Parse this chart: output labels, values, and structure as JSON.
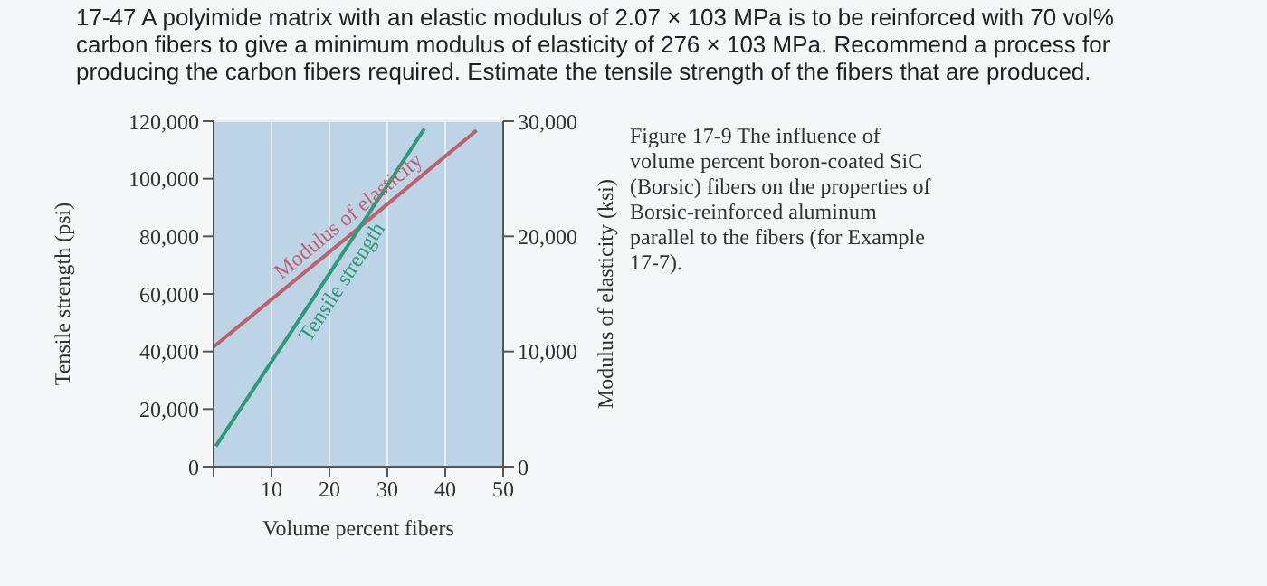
{
  "chart_data": {
    "type": "line",
    "title": "17-47 A polyimide matrix with an elastic modulus of 2.07 × 103 MPa is to be reinforced with 70 vol% carbon fibers to give a minimum modulus of elasticity of 276 × 103 MPa. Recommend a process for producing the carbon fibers required. Estimate the tensile strength of the fibers that are produced.",
    "xlabel": "Volume percent fibers",
    "ylabel": "Tensile strength (psi)",
    "y2label": "Modulus of elasticity (ksi)",
    "annotations": [
      "Figure 17-9 The influence of volume percent boron-coated SiC (Borsic) fibers on the properties of Borsic-reinforced aluminum parallel to the fibers (for Example 17-7)."
    ],
    "series": [
      {
        "name": "Modulus of elasticity",
        "color": "#c0606c",
        "axis": "y2",
        "x": [
          0,
          25,
          45.4
        ],
        "values": [
          10400,
          20700,
          29200
        ]
      },
      {
        "name": "Tensile strength",
        "color": "#2e9a78",
        "x": [
          0.4,
          20,
          36.4
        ],
        "values": [
          7100,
          67000,
          117400
        ]
      }
    ],
    "xlim": [
      0,
      50
    ],
    "xticks": [
      {
        "value": 0,
        "label": null
      },
      10,
      20,
      30,
      40,
      50
    ],
    "ylim": [
      0,
      120000
    ],
    "yticks": [
      0,
      {
        "value": 20000,
        "label": "20,000"
      },
      {
        "value": 40000,
        "label": "40,000"
      },
      {
        "value": 60000,
        "label": "60,000"
      },
      {
        "value": 80000,
        "label": "80,000"
      },
      {
        "value": 100000,
        "label": "100,000"
      },
      {
        "value": 120000,
        "label": "120,000"
      }
    ],
    "y2lim": [
      0,
      30000
    ],
    "y2ticks": [
      0,
      {
        "value": 10000,
        "label": "10,000"
      },
      {
        "value": 20000,
        "label": "20,000"
      },
      {
        "value": 30000,
        "label": "30,000"
      }
    ],
    "grid": true,
    "marker": "none"
  }
}
